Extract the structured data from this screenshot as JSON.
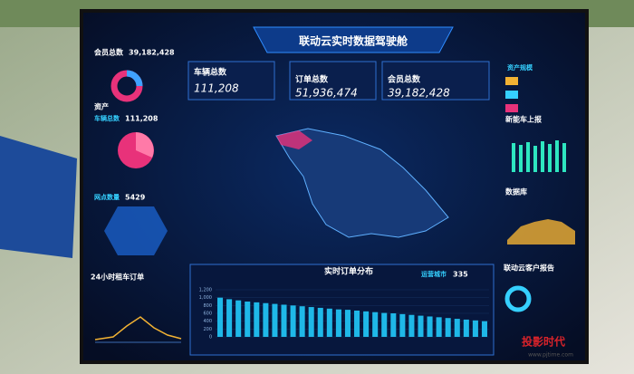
{
  "title": "联动云实时数据驾驶舱",
  "left": {
    "members_label": "会员总数",
    "members_value": "39,182,428",
    "assets_label": "资产",
    "vehicles_label": "车辆总数",
    "vehicles_value": "111,208",
    "outlets_label": "网点数量",
    "outlets_value": "5429",
    "orders24_label": "24小时租车订单"
  },
  "kpis": [
    {
      "label": "车辆总数",
      "value": "111,208"
    },
    {
      "label": "订单总数",
      "value": "51,936,474"
    },
    {
      "label": "会员总数",
      "value": "39,182,428"
    }
  ],
  "right": {
    "assets_scale": "资产规模",
    "ev_report": "新能车上报",
    "database": "数据库",
    "customer_report": "联动云客户报告"
  },
  "bottom": {
    "title": "实时订单分布",
    "cities_label": "运营城市",
    "cities_value": "335"
  },
  "watermark": {
    "name": "投影时代",
    "url": "www.pjtime.com"
  },
  "chart_data": {
    "type": "bar",
    "color": "#1fb8e8",
    "categories": [
      null,
      null,
      null,
      null,
      null,
      null,
      null,
      null,
      null,
      null,
      null,
      null,
      null,
      null,
      null,
      null,
      null,
      null,
      null,
      null,
      null,
      null,
      null,
      null,
      null,
      null,
      null,
      null,
      null,
      null
    ],
    "values": [
      1000,
      960,
      930,
      900,
      880,
      860,
      840,
      820,
      800,
      780,
      760,
      740,
      720,
      700,
      690,
      670,
      650,
      630,
      610,
      600,
      580,
      560,
      540,
      520,
      500,
      480,
      460,
      440,
      420,
      400
    ],
    "ylim": [
      0,
      1200
    ],
    "yticks": [
      0,
      200,
      400,
      600,
      800,
      {
        "value": 1000,
        "label": "1,000"
      },
      {
        "value": 1200,
        "label": "1,200"
      }
    ]
  }
}
